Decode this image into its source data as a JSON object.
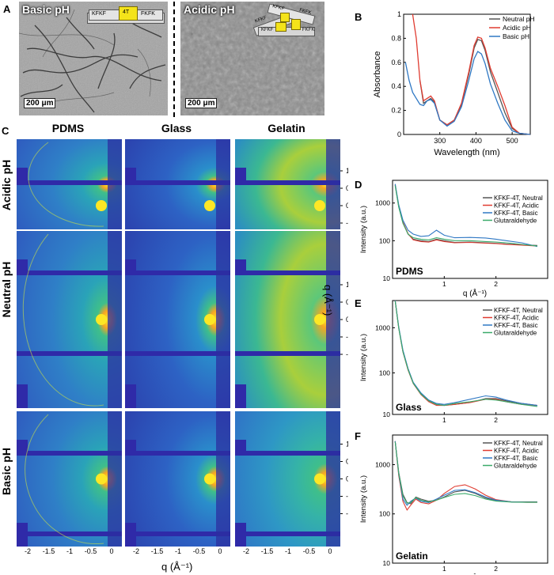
{
  "panels": {
    "A": {
      "label": "A",
      "left_title": "Basic pH",
      "right_title": "Acidic pH",
      "scale_left": "200 μm",
      "scale_right": "200 μm",
      "peptide_left": [
        "KFKF",
        "FKFK",
        "4T"
      ],
      "peptide_right": [
        "KFKF",
        "FKFK",
        "KFKF",
        "FKFK",
        "KFKF"
      ]
    },
    "B": {
      "label": "B"
    },
    "C": {
      "label": "C",
      "columns": [
        "PDMS",
        "Glass",
        "Gelatin"
      ],
      "rows": [
        "Acidic pH",
        "Neutral pH",
        "Basic pH"
      ],
      "right_ticks": [
        "1",
        "0.5",
        "0",
        "-0.5",
        "-1"
      ],
      "bottom_ticks": [
        "-2",
        "-1.5",
        "-1",
        "-0.5",
        "0"
      ],
      "xlabel": "q (Å⁻¹)",
      "ylabel": "q (Å⁻¹)"
    },
    "D": {
      "label": "D",
      "substrate": "PDMS"
    },
    "E": {
      "label": "E",
      "substrate": "Glass"
    },
    "F": {
      "label": "F",
      "substrate": "Gelatin"
    }
  },
  "colors": {
    "neutral": "#555555",
    "acidic": "#e03c31",
    "basic": "#2f78c4",
    "glut": "#3aaa6a"
  },
  "chart_data": [
    {
      "id": "B",
      "type": "line",
      "xlabel": "Wavelength (nm)",
      "ylabel": "Absorbance",
      "xlim": [
        200,
        550
      ],
      "ylim": [
        0,
        1.0
      ],
      "xticks": [
        200,
        300,
        400,
        500
      ],
      "yticks": [
        0,
        0.2,
        0.4,
        0.6,
        0.8,
        1.0
      ],
      "legend": "top-right",
      "series": [
        {
          "name": "Neutral pH",
          "color": "#555555",
          "x": [
            245,
            255,
            265,
            275,
            285,
            300,
            320,
            340,
            360,
            380,
            395,
            405,
            415,
            425,
            440,
            460,
            480,
            500,
            520,
            550
          ],
          "y": [
            0.45,
            0.26,
            0.28,
            0.3,
            0.27,
            0.12,
            0.08,
            0.12,
            0.25,
            0.5,
            0.72,
            0.79,
            0.78,
            0.7,
            0.52,
            0.35,
            0.18,
            0.05,
            0.01,
            0.0
          ]
        },
        {
          "name": "Acidic pH",
          "color": "#e03c31",
          "x": [
            225,
            235,
            245,
            255,
            265,
            275,
            285,
            300,
            320,
            340,
            360,
            380,
            395,
            405,
            415,
            425,
            440,
            460,
            480,
            500,
            520,
            550
          ],
          "y": [
            1.0,
            0.8,
            0.45,
            0.28,
            0.3,
            0.32,
            0.28,
            0.12,
            0.08,
            0.12,
            0.26,
            0.52,
            0.74,
            0.81,
            0.8,
            0.72,
            0.55,
            0.4,
            0.24,
            0.06,
            0.01,
            0.0
          ]
        },
        {
          "name": "Basic pH",
          "color": "#2f78c4",
          "x": [
            205,
            215,
            225,
            235,
            245,
            255,
            265,
            275,
            285,
            300,
            320,
            340,
            360,
            380,
            395,
            405,
            415,
            425,
            440,
            460,
            480,
            500,
            520,
            550
          ],
          "y": [
            0.6,
            0.45,
            0.35,
            0.3,
            0.25,
            0.24,
            0.28,
            0.29,
            0.26,
            0.12,
            0.07,
            0.11,
            0.23,
            0.45,
            0.63,
            0.69,
            0.67,
            0.59,
            0.42,
            0.26,
            0.12,
            0.03,
            0.01,
            0.0
          ]
        }
      ]
    },
    {
      "id": "D",
      "type": "line",
      "title": "PDMS",
      "xlabel": "q (Å⁻¹)",
      "ylabel": "Intensity (a.u.)",
      "xlim": [
        0,
        3.0
      ],
      "ylim_log": [
        10,
        4000
      ],
      "xticks": [
        1,
        2
      ],
      "yticks": [
        10,
        100,
        1000
      ],
      "legend": "center-right",
      "series": [
        {
          "name": "KFKF-4T, Neutral",
          "color": "#555555",
          "x": [
            0.05,
            0.12,
            0.2,
            0.3,
            0.4,
            0.55,
            0.7,
            0.85,
            1.0,
            1.2,
            1.5,
            1.8,
            2.0,
            2.2,
            2.5,
            2.8
          ],
          "y": [
            3000,
            800,
            300,
            150,
            110,
            100,
            95,
            110,
            100,
            90,
            92,
            88,
            85,
            82,
            78,
            75
          ]
        },
        {
          "name": "KFKF-4T, Acidic",
          "color": "#e03c31",
          "x": [
            0.05,
            0.12,
            0.2,
            0.3,
            0.4,
            0.55,
            0.7,
            0.85,
            1.0,
            1.2,
            1.5,
            1.8,
            2.0,
            2.2,
            2.5,
            2.8
          ],
          "y": [
            3100,
            850,
            310,
            155,
            105,
            95,
            92,
            105,
            95,
            88,
            90,
            86,
            84,
            80,
            76,
            72
          ]
        },
        {
          "name": "KFKF-4T, Basic",
          "color": "#2f78c4",
          "x": [
            0.05,
            0.12,
            0.2,
            0.3,
            0.4,
            0.55,
            0.7,
            0.85,
            1.0,
            1.2,
            1.5,
            1.8,
            2.0,
            2.2,
            2.5,
            2.8
          ],
          "y": [
            3200,
            900,
            350,
            190,
            150,
            130,
            135,
            190,
            140,
            120,
            122,
            118,
            110,
            100,
            88,
            70
          ]
        },
        {
          "name": "Glutaraldehyde",
          "color": "#3aaa6a",
          "x": [
            0.05,
            0.12,
            0.2,
            0.3,
            0.4,
            0.55,
            0.7,
            0.85,
            1.0,
            1.2,
            1.5,
            1.8,
            2.0,
            2.2,
            2.5,
            2.8
          ],
          "y": [
            2900,
            780,
            290,
            150,
            120,
            110,
            105,
            120,
            110,
            100,
            100,
            95,
            92,
            88,
            80,
            72
          ]
        }
      ]
    },
    {
      "id": "E",
      "type": "line",
      "title": "Glass",
      "xlabel": "q (Å⁻¹)",
      "ylabel": "Intensity (a.u.)",
      "xlim": [
        0,
        3.0
      ],
      "ylim_log": [
        12,
        4000
      ],
      "xticks": [
        1,
        2
      ],
      "yticks": [
        10,
        100,
        1000
      ],
      "legend": "top-right",
      "series": [
        {
          "name": "KFKF-4T, Neutral",
          "color": "#555555",
          "x": [
            0.05,
            0.12,
            0.2,
            0.3,
            0.4,
            0.55,
            0.7,
            0.85,
            1.0,
            1.2,
            1.5,
            1.8,
            2.0,
            2.2,
            2.5,
            2.8
          ],
          "y": [
            4000,
            1000,
            300,
            120,
            60,
            35,
            24,
            20,
            19,
            20,
            22,
            27,
            27,
            24,
            21,
            19
          ]
        },
        {
          "name": "KFKF-4T, Acidic",
          "color": "#e03c31",
          "x": [
            0.05,
            0.12,
            0.2,
            0.3,
            0.4,
            0.55,
            0.7,
            0.85,
            1.0,
            1.2,
            1.5,
            1.8,
            2.0,
            2.2,
            2.5,
            2.8
          ],
          "y": [
            4000,
            1000,
            290,
            115,
            58,
            33,
            23,
            19,
            19,
            20,
            22,
            26,
            26,
            23,
            20,
            19
          ]
        },
        {
          "name": "KFKF-4T, Basic",
          "color": "#2f78c4",
          "x": [
            0.05,
            0.12,
            0.2,
            0.3,
            0.4,
            0.55,
            0.7,
            0.85,
            1.0,
            1.2,
            1.5,
            1.8,
            2.0,
            2.2,
            2.5,
            2.8
          ],
          "y": [
            4000,
            1050,
            320,
            125,
            62,
            36,
            25,
            21,
            20,
            22,
            26,
            31,
            29,
            25,
            21,
            19
          ]
        },
        {
          "name": "Glutaraldehyde",
          "color": "#3aaa6a",
          "x": [
            0.05,
            0.12,
            0.2,
            0.3,
            0.4,
            0.55,
            0.7,
            0.85,
            1.0,
            1.2,
            1.5,
            1.8,
            2.0,
            2.2,
            2.5,
            2.8
          ],
          "y": [
            3900,
            980,
            295,
            118,
            59,
            34,
            24,
            20,
            19,
            21,
            23,
            26,
            25,
            23,
            20,
            18
          ]
        }
      ]
    },
    {
      "id": "F",
      "type": "line",
      "title": "Gelatin",
      "xlabel": "q (Å⁻¹)",
      "ylabel": "Intensity (a.u.)",
      "xlim": [
        0,
        3.0
      ],
      "ylim_log": [
        10,
        4000
      ],
      "xticks": [
        1,
        2
      ],
      "yticks": [
        10,
        100,
        1000
      ],
      "legend": "top-right",
      "series": [
        {
          "name": "KFKF-4T, Neutral",
          "color": "#555555",
          "x": [
            0.05,
            0.12,
            0.2,
            0.28,
            0.35,
            0.45,
            0.55,
            0.7,
            0.85,
            1.0,
            1.2,
            1.4,
            1.6,
            1.8,
            2.0,
            2.3,
            2.6,
            2.8
          ],
          "y": [
            3000,
            700,
            250,
            170,
            160,
            220,
            200,
            180,
            190,
            220,
            280,
            300,
            260,
            210,
            185,
            175,
            175,
            175
          ]
        },
        {
          "name": "KFKF-4T, Acidic",
          "color": "#e03c31",
          "x": [
            0.05,
            0.12,
            0.2,
            0.28,
            0.35,
            0.45,
            0.55,
            0.7,
            0.85,
            1.0,
            1.2,
            1.4,
            1.6,
            1.8,
            2.0,
            2.3,
            2.6,
            2.8
          ],
          "y": [
            3000,
            600,
            180,
            120,
            150,
            200,
            170,
            160,
            190,
            260,
            360,
            390,
            320,
            240,
            195,
            175,
            172,
            172
          ]
        },
        {
          "name": "KFKF-4T, Basic",
          "color": "#2f78c4",
          "x": [
            0.05,
            0.12,
            0.2,
            0.28,
            0.35,
            0.45,
            0.55,
            0.7,
            0.85,
            1.0,
            1.2,
            1.4,
            1.6,
            1.8,
            2.0,
            2.3,
            2.6,
            2.8
          ],
          "y": [
            3000,
            650,
            200,
            150,
            180,
            210,
            180,
            170,
            200,
            240,
            300,
            310,
            270,
            220,
            190,
            175,
            173,
            173
          ]
        },
        {
          "name": "Glutaraldehyde",
          "color": "#3aaa6a",
          "x": [
            0.05,
            0.12,
            0.2,
            0.28,
            0.35,
            0.45,
            0.55,
            0.7,
            0.85,
            1.0,
            1.2,
            1.4,
            1.6,
            1.8,
            2.0,
            2.3,
            2.6,
            2.8
          ],
          "y": [
            2900,
            680,
            230,
            165,
            170,
            215,
            190,
            175,
            190,
            215,
            250,
            260,
            235,
            200,
            182,
            174,
            172,
            172
          ]
        }
      ]
    }
  ]
}
